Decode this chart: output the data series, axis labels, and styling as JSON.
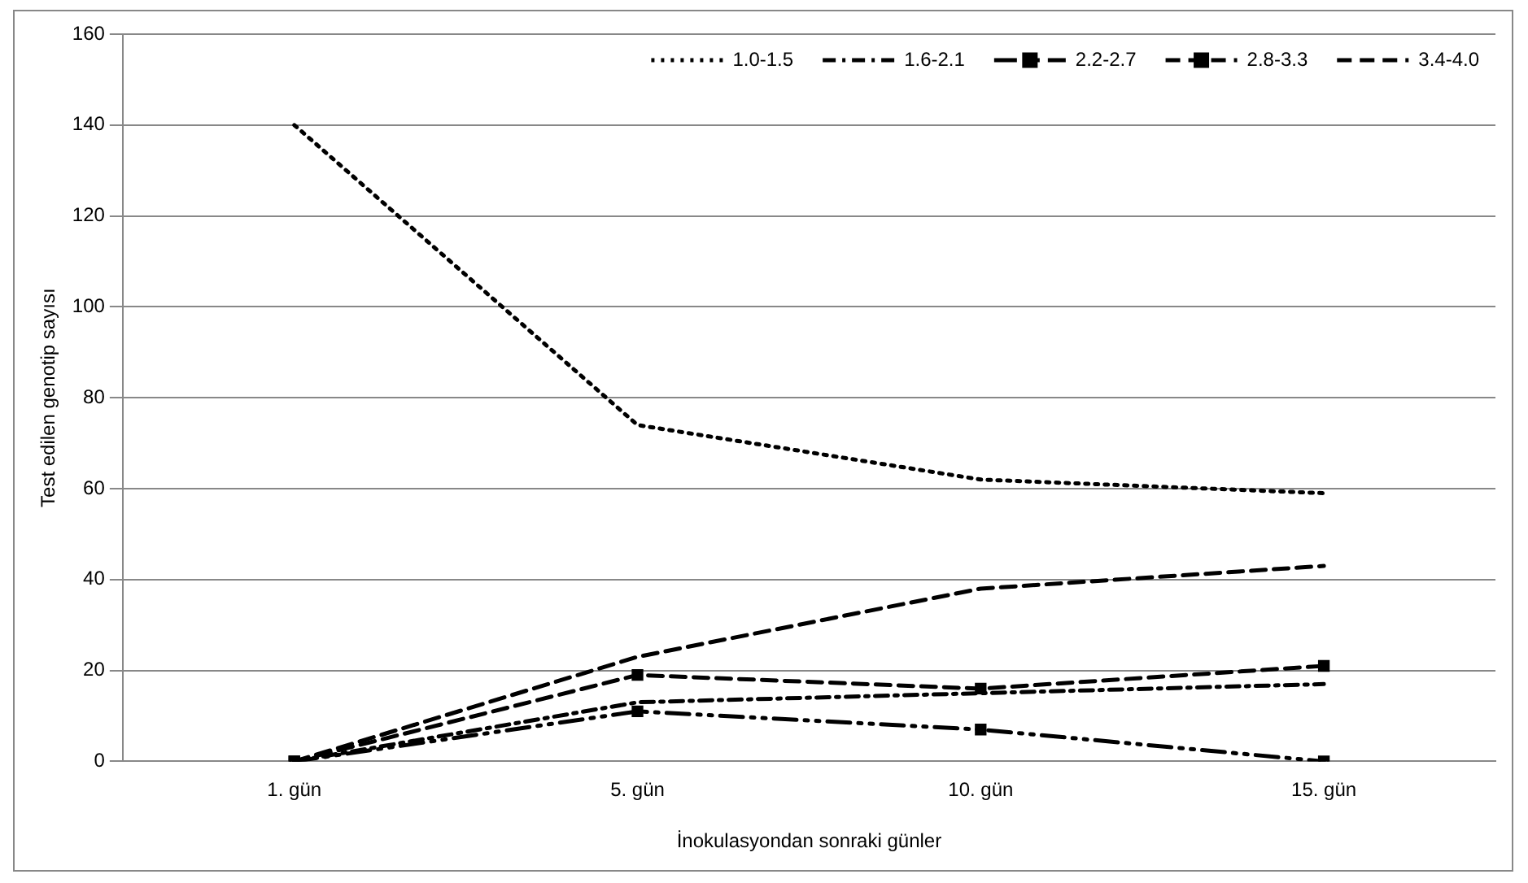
{
  "chart_data": {
    "type": "line",
    "xlabel": "İnokulasyondan sonraki günler",
    "ylabel": "Test edilen genotip sayısı",
    "categories": [
      "1. gün",
      "5. gün",
      "10. gün",
      "15. gün"
    ],
    "series": [
      {
        "name": "1.0-1.5",
        "color": "#000000",
        "line_style": "dotted",
        "marker": "none",
        "values": [
          140,
          74,
          62,
          59
        ]
      },
      {
        "name": "1.6-2.1",
        "color": "#000000",
        "line_style": "dashdot",
        "marker": "none",
        "values": [
          0,
          13,
          15,
          17
        ]
      },
      {
        "name": "2.2-2.7",
        "color": "#000000",
        "line_style": "dashdotdot",
        "marker": "square",
        "values": [
          0,
          11,
          7,
          0
        ]
      },
      {
        "name": "2.8-3.3",
        "color": "#000000",
        "line_style": "dashed",
        "marker": "square",
        "values": [
          0,
          19,
          16,
          21
        ]
      },
      {
        "name": "3.4-4.0",
        "color": "#000000",
        "line_style": "dashed",
        "marker": "none",
        "values": [
          0,
          23,
          38,
          43
        ]
      }
    ],
    "ylim": [
      0,
      160
    ],
    "yticks": [
      0,
      20,
      40,
      60,
      80,
      100,
      120,
      140,
      160
    ],
    "grid": "y",
    "legend": "top right"
  }
}
